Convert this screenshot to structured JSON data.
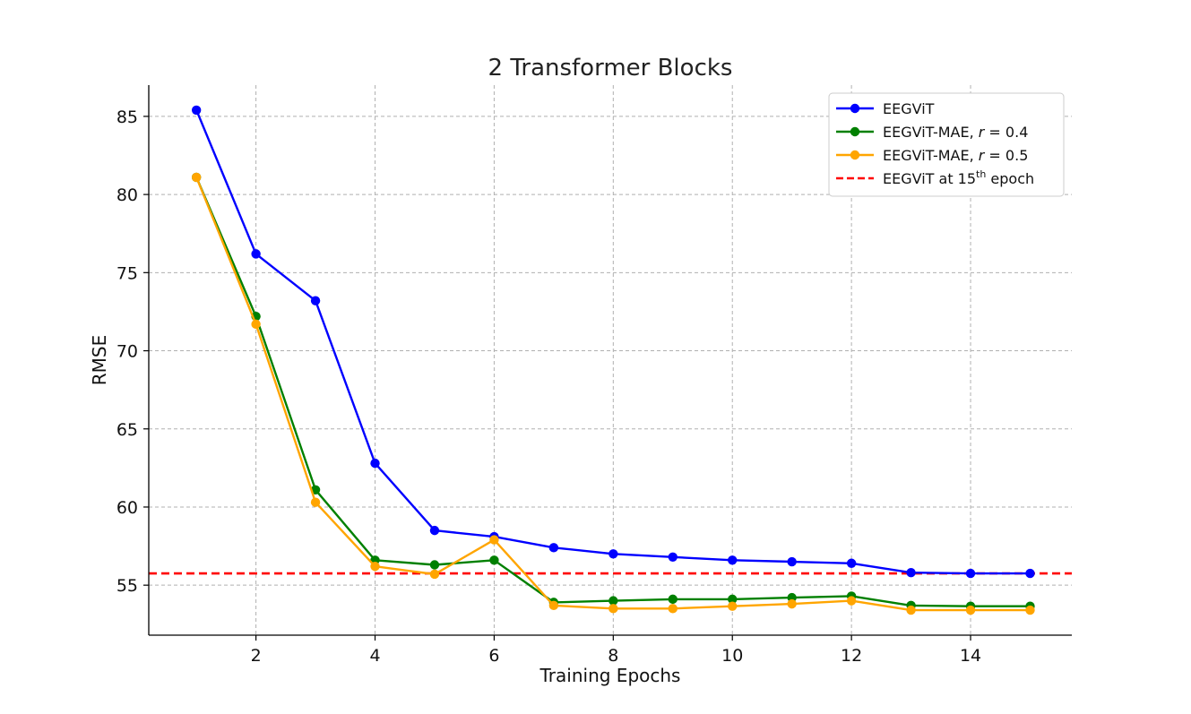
{
  "chart_data": {
    "type": "line",
    "title": "2 Transformer Blocks",
    "xlabel": "Training Epochs",
    "ylabel": "RMSE",
    "xlim": [
      0.2,
      15.7
    ],
    "ylim": [
      51.8,
      87
    ],
    "xticks": [
      2,
      4,
      6,
      8,
      10,
      12,
      14
    ],
    "yticks": [
      55,
      60,
      65,
      70,
      75,
      80,
      85
    ],
    "grid": true,
    "legend_position": "top-right",
    "x": [
      1,
      2,
      3,
      4,
      5,
      6,
      7,
      8,
      9,
      10,
      11,
      12,
      13,
      14,
      15
    ],
    "series": [
      {
        "name": "EEGViT",
        "color": "#0000ff",
        "marker": "circle",
        "values": [
          85.4,
          76.2,
          73.2,
          62.8,
          58.5,
          58.1,
          57.4,
          57.0,
          56.8,
          56.6,
          56.5,
          56.4,
          55.8,
          55.75,
          55.75
        ]
      },
      {
        "name": "EEGViT-MAE, ",
        "name_var": "r",
        "name_rest": " = 0.4",
        "color": "#008000",
        "marker": "circle",
        "values": [
          81.1,
          72.2,
          61.1,
          56.6,
          56.3,
          56.6,
          53.9,
          54.0,
          54.1,
          54.1,
          54.2,
          54.3,
          53.7,
          53.65,
          53.65
        ]
      },
      {
        "name": "EEGViT-MAE, ",
        "name_var": "r",
        "name_rest": " = 0.5",
        "color": "#ffa500",
        "marker": "circle",
        "values": [
          81.1,
          71.7,
          60.3,
          56.2,
          55.7,
          57.9,
          53.7,
          53.5,
          53.5,
          53.65,
          53.8,
          54.0,
          53.4,
          53.4,
          53.4
        ]
      }
    ],
    "reference_line": {
      "name": "EEGViT at 15",
      "name_sup": "th",
      "name_rest": " epoch",
      "y": 55.75,
      "color": "#ff0000",
      "style": "dashed"
    }
  }
}
